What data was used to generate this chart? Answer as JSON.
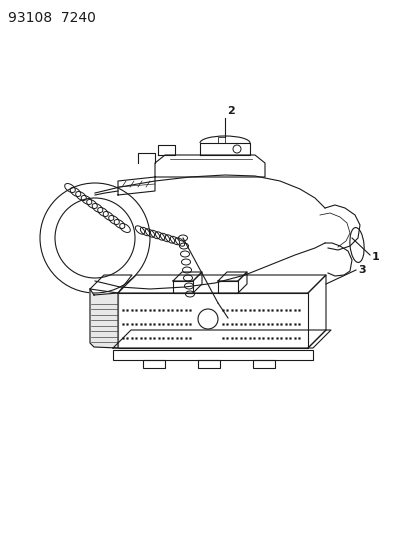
{
  "title_text": "93108  7240",
  "background_color": "#ffffff",
  "line_color": "#1a1a1a",
  "fig_width": 4.14,
  "fig_height": 5.33,
  "dpi": 100,
  "label1": "1",
  "label2": "2",
  "label3": "3",
  "title_fontsize": 10,
  "label_fontsize": 8
}
